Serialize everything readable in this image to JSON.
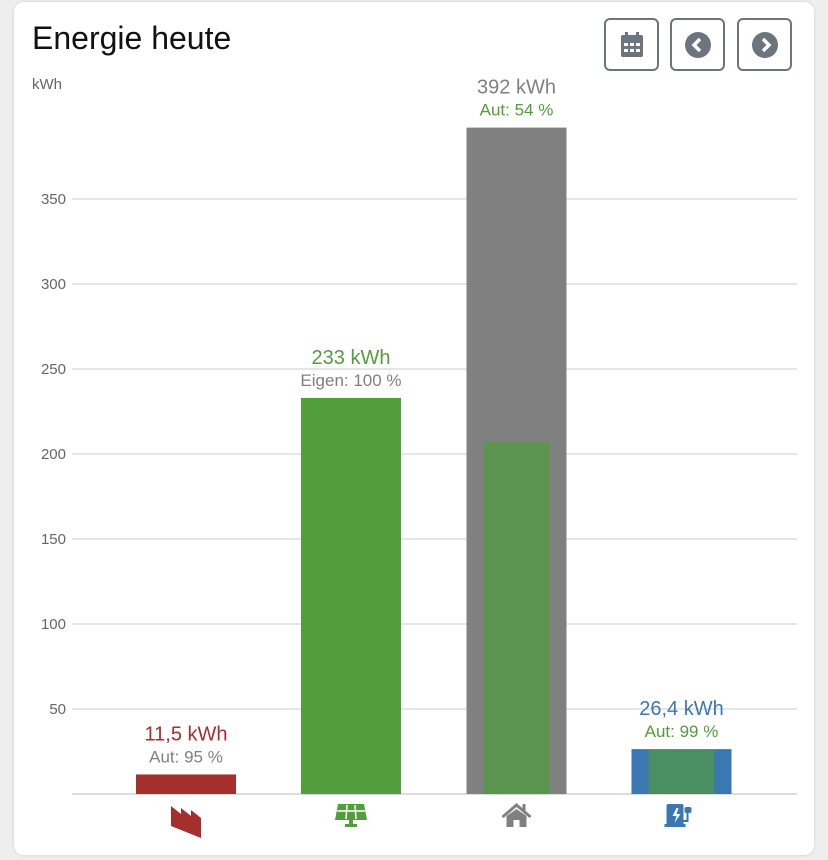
{
  "title": "Energie heute",
  "buttons": {
    "calendar": "calendar-icon",
    "prev": "chevron-left-circle-icon",
    "next": "chevron-right-circle-icon"
  },
  "colors": {
    "grid": "#cccccc",
    "red": "#a52f2c",
    "green": "#529e3c",
    "gray": "#808080",
    "blue": "#3a77b3",
    "inner_green": "#5c9550",
    "inner_green2": "#4a8f62"
  },
  "chart_data": {
    "type": "bar",
    "ylabel": "kWh",
    "ylim": [
      0,
      400
    ],
    "yticks": [
      50,
      100,
      150,
      200,
      250,
      300,
      350
    ],
    "grid": true,
    "categories": [
      {
        "icon": "factory-icon",
        "value": 11.5,
        "label": "11,5 kWh",
        "sub": "Aut: 95 %",
        "color": "#a52f2c",
        "labelColor": "#a52f2c",
        "subColor": "#808080"
      },
      {
        "icon": "solar-panel-icon",
        "value": 233,
        "label": "233 kWh",
        "sub": "Eigen: 100 %",
        "color": "#529e3c",
        "labelColor": "#529e3c",
        "subColor": "#808080"
      },
      {
        "icon": "house-icon",
        "value": 392,
        "inner": 207,
        "innerColor": "#5c9550",
        "label": "392 kWh",
        "sub": "Aut: 54 %",
        "color": "#808080",
        "labelColor": "#808080",
        "subColor": "#529e3c"
      },
      {
        "icon": "ev-charger-icon",
        "value": 26.4,
        "inner": 26,
        "innerColor": "#4a8f62",
        "label": "26,4 kWh",
        "sub": "Aut: 99 %",
        "color": "#3a77b3",
        "labelColor": "#3a77b3",
        "subColor": "#529e3c"
      }
    ]
  }
}
